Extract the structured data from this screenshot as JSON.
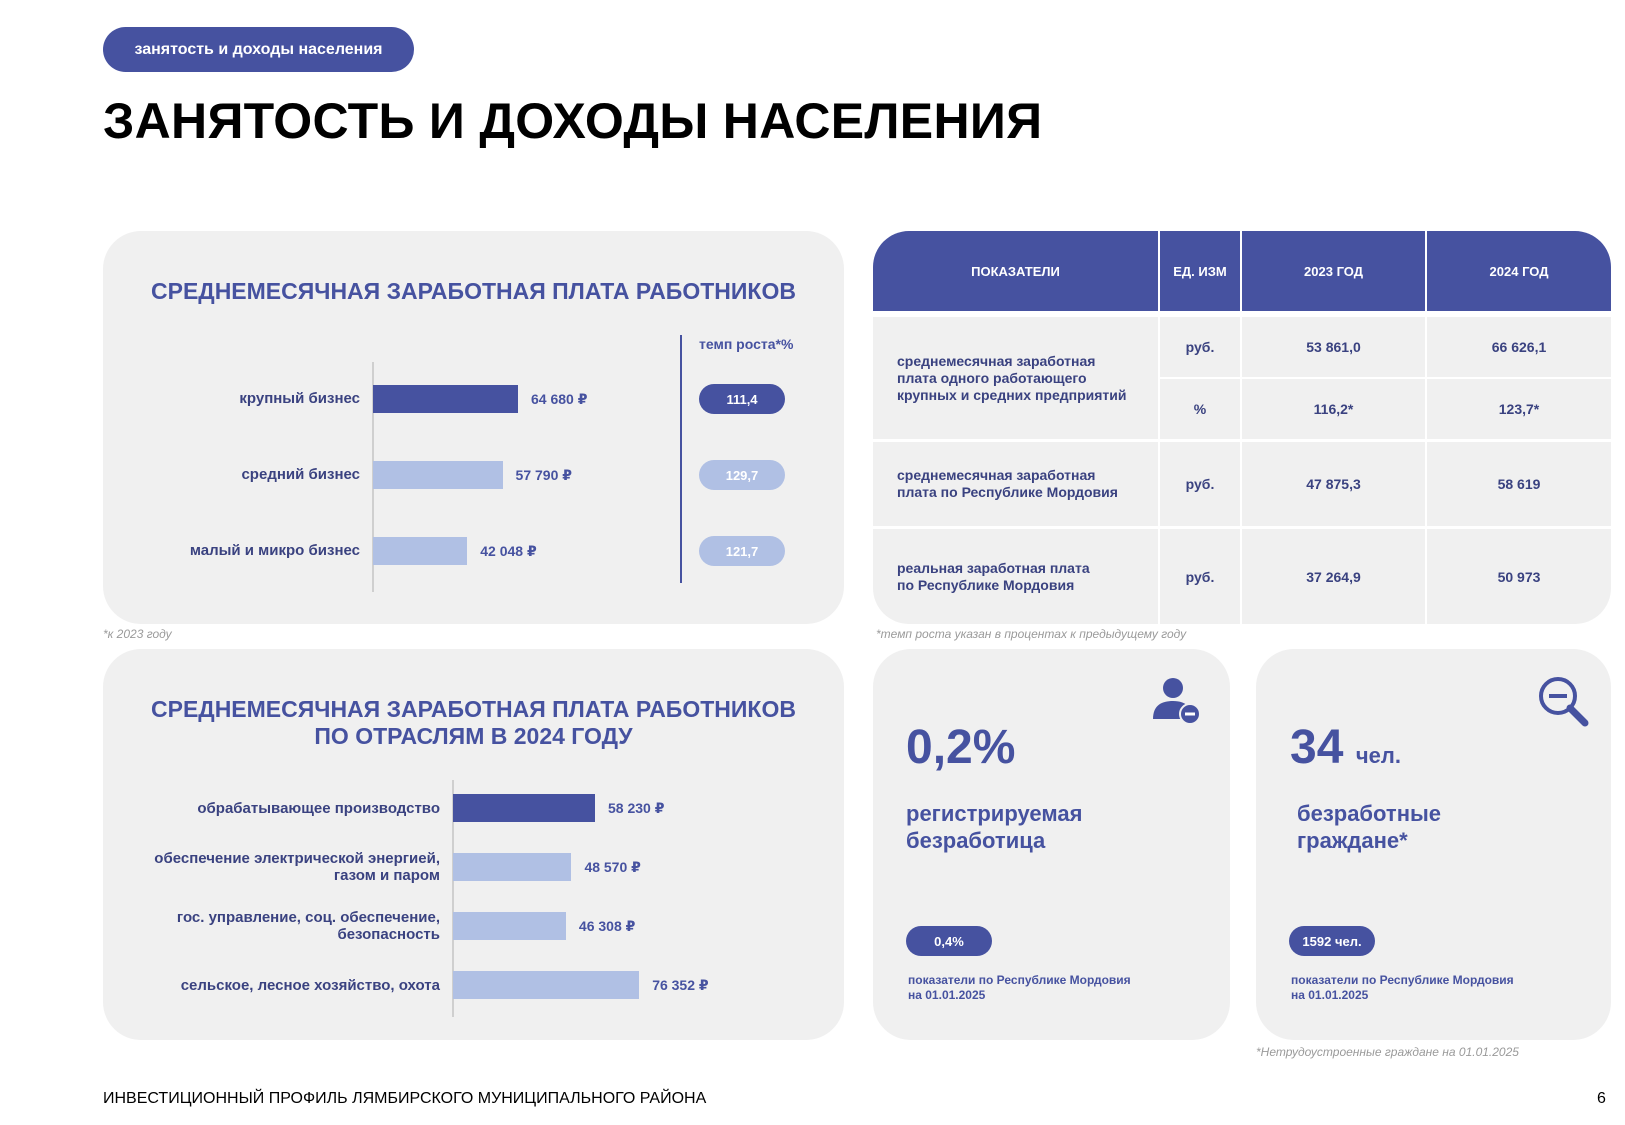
{
  "header": {
    "tag": "занятость и доходы населения",
    "title": "ЗАНЯТОСТЬ И ДОХОДЫ НАСЕЛЕНИЯ"
  },
  "chart1": {
    "title": "СРЕДНЕМЕСЯЧНАЯ ЗАРАБОТНАЯ ПЛАТА РАБОТНИКОВ",
    "rate_header": "темп роста*%",
    "footnote": "*к 2023 году"
  },
  "chart2": {
    "title_line1": "СРЕДНЕМЕСЯЧНАЯ ЗАРАБОТНАЯ ПЛАТА РАБОТНИКОВ",
    "title_line2": "ПО ОТРАСЛЯМ В 2024 ГОДУ"
  },
  "chart_data": [
    {
      "type": "bar",
      "orientation": "horizontal",
      "title": "СРЕДНЕМЕСЯЧНАЯ ЗАРАБОТНАЯ ПЛАТА РАБОТНИКОВ",
      "categories": [
        "крупный бизнес",
        "средний бизнес",
        "малый и микро бизнес"
      ],
      "values": [
        64680,
        57790,
        42048
      ],
      "value_labels": [
        "64 680 ₽",
        "57 790 ₽",
        "42 048 ₽"
      ],
      "growth_rates": [
        "111,4",
        "129,7",
        "121,7"
      ],
      "highlight_index": 0,
      "colors": {
        "highlight": "#4652a0",
        "normal": "#b0c0e4"
      }
    },
    {
      "type": "bar",
      "orientation": "horizontal",
      "title": "СРЕДНЕМЕСЯЧНАЯ ЗАРАБОТНАЯ ПЛАТА РАБОТНИКОВ ПО ОТРАСЛЯМ В 2024 ГОДУ",
      "categories": [
        [
          "обрабатывающее производство"
        ],
        [
          "обеспечение электрической энергией,",
          "газом и паром"
        ],
        [
          "гос. управление, соц. обеспечение,",
          "безопасность"
        ],
        [
          "сельское, лесное хозяйство, охота"
        ]
      ],
      "values": [
        58230,
        48570,
        46308,
        76352
      ],
      "value_labels": [
        "58 230 ₽",
        "48 570 ₽",
        "46 308 ₽",
        "76 352 ₽"
      ],
      "highlight_index": 0,
      "colors": {
        "highlight": "#4652a0",
        "normal": "#b0c0e4"
      }
    }
  ],
  "table": {
    "headers": [
      "ПОКАЗАТЕЛИ",
      "ЕД. ИЗМ",
      "2023 ГОД",
      "2024 ГОД"
    ],
    "rows": [
      {
        "indicator": [
          "среднемесячная заработная",
          "плата одного работающего",
          "крупных и средних предприятий"
        ],
        "sub": [
          {
            "unit": "руб.",
            "y2023": "53 861,0",
            "y2024": "66 626,1"
          },
          {
            "unit": "%",
            "y2023": "116,2*",
            "y2024": "123,7*"
          }
        ]
      },
      {
        "indicator": [
          "среднемесячная заработная",
          "плата по Республике Мордовия"
        ],
        "sub": [
          {
            "unit": "руб.",
            "y2023": "47 875,3",
            "y2024": "58 619"
          }
        ]
      },
      {
        "indicator": [
          "реальная заработная плата",
          "по Республике Мордовия"
        ],
        "sub": [
          {
            "unit": "руб.",
            "y2023": "37 264,9",
            "y2024": "50 973"
          }
        ]
      }
    ],
    "footnote": "*темп роста указан в процентах к предыдущему году"
  },
  "stats": [
    {
      "value": "0,2%",
      "unit": "",
      "label_line1": "регистрируемая",
      "label_line2": "безработица",
      "badge": "0,4%",
      "note_line1": "показатели по Республике Мордовия",
      "note_line2": "на 01.01.2025",
      "icon": "user-minus-icon"
    },
    {
      "value": "34",
      "unit": "чел.",
      "label_line1": "безработные",
      "label_line2": "граждане*",
      "badge": "1592 чел.",
      "note_line1": "показатели по Республике Мордовия",
      "note_line2": "на 01.01.2025",
      "icon": "search-minus-icon"
    }
  ],
  "stats_footnote": "*Нетрудоустроенные граждане на 01.01.2025",
  "footer": {
    "text": "ИНВЕСТИЦИОННЫЙ ПРОФИЛЬ ЛЯМБИРСКОГО МУНИЦИПАЛЬНОГО РАЙОНА",
    "page": "6"
  }
}
